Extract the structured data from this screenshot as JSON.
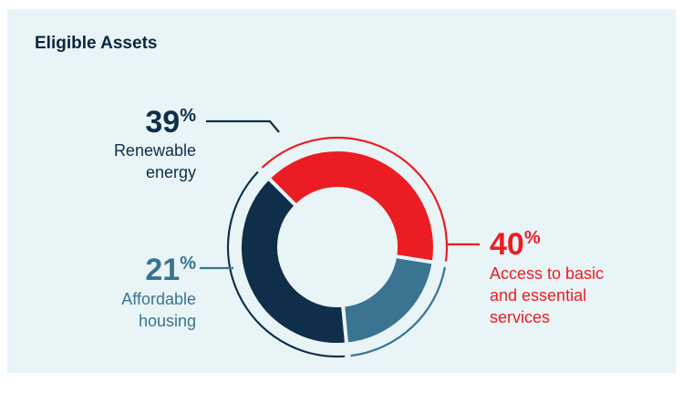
{
  "header": {
    "title": "Eligible Assets"
  },
  "colors": {
    "background": "#e8f4f6",
    "renewable": "#0f2e4a",
    "housing": "#3a7490",
    "services": "#ec1c24"
  },
  "chart_data": {
    "type": "pie",
    "title": "Eligible Assets",
    "style": "donut",
    "start_angle_deg": -45,
    "direction": "clockwise",
    "slices": [
      {
        "name": "Access to basic and essential services",
        "value": 40,
        "percent_label": "40",
        "label_lines": [
          "Access to basic",
          "and essential",
          "services"
        ],
        "color": "#ec1c24"
      },
      {
        "name": "Affordable housing",
        "value": 21,
        "percent_label": "21",
        "label_lines": [
          "Affordable",
          "housing"
        ],
        "color": "#3a7490"
      },
      {
        "name": "Renewable energy",
        "value": 39,
        "percent_label": "39",
        "label_lines": [
          "Renewable",
          "energy"
        ],
        "color": "#0f2e4a"
      }
    ],
    "percent_symbol": "%"
  }
}
